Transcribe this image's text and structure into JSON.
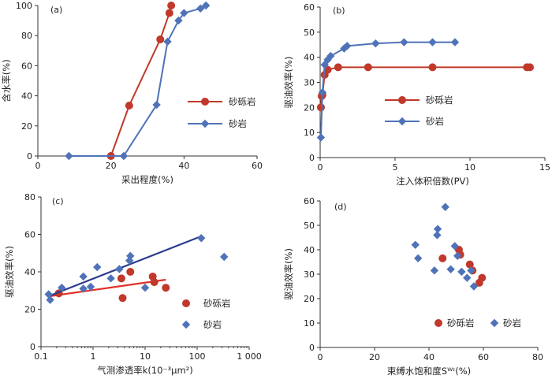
{
  "chart_data": [
    {
      "panel": "(a)",
      "type": "line",
      "xlabel": "采出程度(%)",
      "ylabel": "含水率(%)",
      "xlim": [
        0,
        60
      ],
      "ylim": [
        0,
        100
      ],
      "xticks": [
        "0",
        "20",
        "40",
        "60"
      ],
      "yticks": [
        "0",
        "20",
        "40",
        "60",
        "80",
        "100"
      ],
      "legend_position": "center-right",
      "series": [
        {
          "name": "砂砾岩",
          "color": "#c0392b",
          "marker": "circle",
          "x": [
            20.0,
            25.0,
            33.5,
            36.0,
            36.5
          ],
          "y": [
            0,
            33.5,
            77.5,
            95,
            100
          ]
        },
        {
          "name": "砂岩",
          "color": "#4f72b8",
          "marker": "diamond",
          "x": [
            8.5,
            23.5,
            32.5,
            35.5,
            38.5,
            40.0,
            44.5,
            46.0
          ],
          "y": [
            0,
            0,
            34,
            76,
            90,
            95,
            98,
            100
          ]
        }
      ]
    },
    {
      "panel": "(b)",
      "type": "line",
      "xlabel": "注入体积倍数(PV)",
      "ylabel": "驱油效率(%)",
      "xlim": [
        0,
        15
      ],
      "ylim": [
        0,
        60
      ],
      "xticks": [
        "0",
        "5",
        "10",
        "15"
      ],
      "yticks": [
        "0",
        "10",
        "20",
        "30",
        "40",
        "50",
        "60"
      ],
      "legend_position": "center-right",
      "series": [
        {
          "name": "砂砾岩",
          "color": "#c0392b",
          "marker": "circle",
          "x": [
            0.05,
            0.1,
            0.15,
            0.3,
            0.5,
            1.2,
            3.2,
            7.5,
            13.8,
            14.0
          ],
          "y": [
            20,
            24.5,
            25,
            33,
            35,
            36,
            36,
            36,
            36,
            36
          ]
        },
        {
          "name": "砂岩",
          "color": "#4f72b8",
          "marker": "diamond",
          "x": [
            0.05,
            0.15,
            0.3,
            0.5,
            0.7,
            1.6,
            1.8,
            3.7,
            5.6,
            7.5,
            9.0
          ],
          "y": [
            8,
            26,
            37,
            39,
            40.5,
            43.5,
            44.5,
            45.5,
            46,
            46,
            46
          ]
        }
      ]
    },
    {
      "panel": "(c)",
      "type": "scatter",
      "xlabel": "气测渗透率k(10⁻³μm²)",
      "ylabel": "驱油效率(%)",
      "xscale": "log",
      "xlim": [
        0.1,
        1000
      ],
      "ylim": [
        0,
        80
      ],
      "xticks": [
        "0.1",
        "1",
        "10",
        "100",
        "1 000"
      ],
      "yticks": [
        "0",
        "20",
        "40",
        "60",
        "80"
      ],
      "legend_position": "bottom-right",
      "series": [
        {
          "name": "砂砾岩",
          "color": "#c0392b",
          "marker": "circle",
          "points": [
            [
              0.22,
              28.5
            ],
            [
              3.5,
              36.5
            ],
            [
              3.7,
              26
            ],
            [
              5.2,
              40
            ],
            [
              14,
              37.5
            ],
            [
              15,
              34.5
            ],
            [
              25,
              31.5
            ]
          ],
          "trend": [
            [
              0.15,
              27
            ],
            [
              25,
              35.8
            ]
          ]
        },
        {
          "name": "砂岩",
          "color": "#4f72b8",
          "marker": "diamond",
          "points": [
            [
              0.14,
              28
            ],
            [
              0.15,
              25
            ],
            [
              0.25,
              31.5
            ],
            [
              0.65,
              31
            ],
            [
              0.65,
              37.5
            ],
            [
              0.9,
              32
            ],
            [
              1.2,
              42.5
            ],
            [
              2.2,
              36.5
            ],
            [
              3.2,
              41.5
            ],
            [
              5,
              46
            ],
            [
              5.2,
              48.5
            ],
            [
              10,
              31.5
            ],
            [
              120,
              58
            ],
            [
              330,
              48
            ]
          ],
          "trend": [
            [
              0.14,
              27
            ],
            [
              120,
              59
            ]
          ]
        }
      ]
    },
    {
      "panel": "(d)",
      "type": "scatter",
      "xlabel": "束缚水饱和度Sᵂᶦ(%)",
      "ylabel": "驱油效率(%)",
      "xlim": [
        0,
        80
      ],
      "ylim": [
        0,
        60
      ],
      "xticks": [
        "0",
        "20",
        "40",
        "60",
        "80"
      ],
      "yticks": [
        "0",
        "10",
        "20",
        "30",
        "40",
        "50",
        "60"
      ],
      "legend_position": "bottom",
      "series": [
        {
          "name": "砂砾岩",
          "color": "#c0392b",
          "marker": "circle",
          "points": [
            [
              45,
              36.5
            ],
            [
              51,
              40
            ],
            [
              51.5,
              38
            ],
            [
              55,
              34
            ],
            [
              56,
              31.5
            ],
            [
              58.5,
              26.5
            ],
            [
              59.5,
              28.5
            ]
          ]
        },
        {
          "name": "砂岩",
          "color": "#4f72b8",
          "marker": "diamond",
          "points": [
            [
              35,
              42
            ],
            [
              36,
              36.5
            ],
            [
              42,
              31.5
            ],
            [
              43,
              46
            ],
            [
              43.2,
              48.5
            ],
            [
              46,
              57.5
            ],
            [
              48,
              32
            ],
            [
              49.5,
              41.5
            ],
            [
              50.5,
              37.5
            ],
            [
              52,
              31
            ],
            [
              54,
              28.5
            ],
            [
              55.5,
              31.5
            ],
            [
              56.5,
              25
            ]
          ]
        }
      ]
    }
  ]
}
